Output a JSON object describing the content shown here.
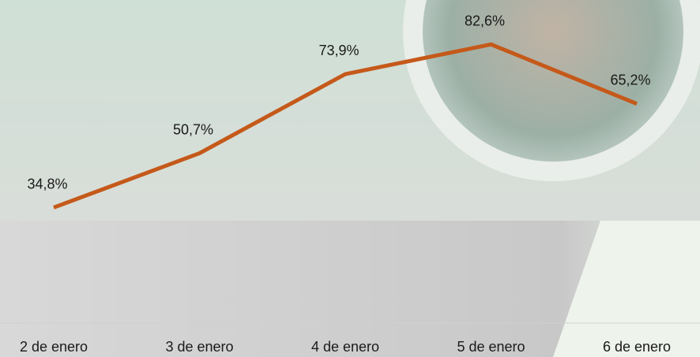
{
  "chart_data": {
    "type": "line",
    "categories": [
      "2 de enero",
      "3 de enero",
      "4 de enero",
      "5 de enero",
      "6 de enero"
    ],
    "series": [
      {
        "color": "#c4591a",
        "values": [
          34.8,
          50.7,
          73.9,
          82.6,
          65.2
        ],
        "value_labels": [
          "34,8%",
          "50,7%",
          "73,9%",
          "82,6%",
          "65,2%"
        ]
      }
    ]
  }
}
